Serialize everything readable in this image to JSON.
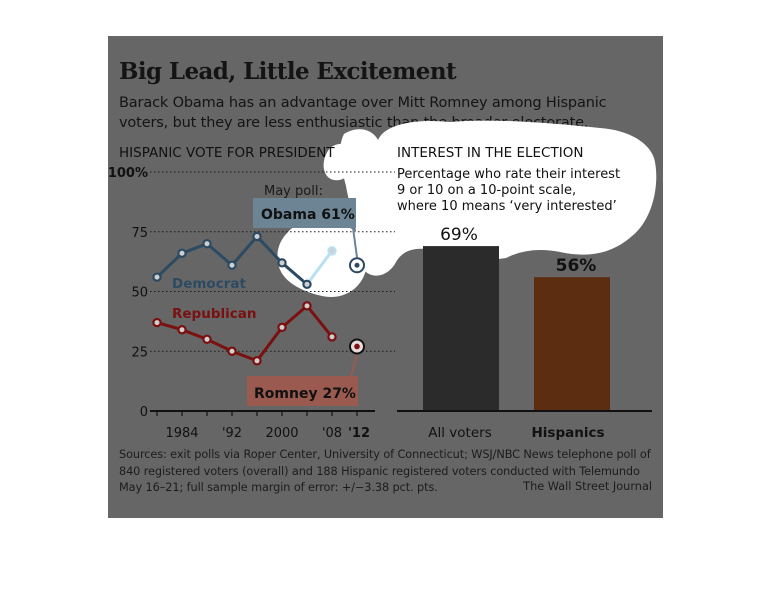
{
  "header": {
    "title": "Big Lead, Little Excitement",
    "subtitle": "Barack Obama has an advantage over Mitt Romney among Hispanic voters, but they are less enthusiastic than the broader electorate."
  },
  "footer": {
    "sources": "Sources: exit polls via Roper Center, University of Connecticut; WSJ/NBC News telephone poll of 840 registered voters (overall) and 188 Hispanic registered voters conducted with Telemundo May 16–21; full sample margin of error: +/−3.38 pct. pts.",
    "credit": "The Wall Street Journal"
  },
  "colors": {
    "panel": "#666666",
    "democrat": "#2d4a63",
    "democrat_callout": "#b9e0f2",
    "republican": "#7a1010",
    "romney_box": "#9a5a50",
    "all_voters_bar": "#2b2b2b",
    "hispanics_bar": "#5c2d10"
  },
  "chart_data": [
    {
      "type": "line",
      "title": "HISPANIC VOTE FOR PRESIDENT",
      "x": [
        1980,
        1984,
        1988,
        1992,
        1996,
        2000,
        2004,
        2008
      ],
      "x_tick_labels": [
        "1984",
        "'92",
        "2000",
        "'08",
        "'12"
      ],
      "y_tick_labels": [
        "100%",
        "75",
        "50",
        "25",
        "0"
      ],
      "ylim": [
        0,
        100
      ],
      "series": [
        {
          "name": "Democrat",
          "values": [
            56,
            66,
            70,
            61,
            73,
            62,
            53,
            67
          ]
        },
        {
          "name": "Republican",
          "values": [
            37,
            34,
            30,
            25,
            21,
            35,
            44,
            31
          ]
        }
      ],
      "annotations": {
        "may_poll_label": "May poll:",
        "obama_label": "Obama",
        "obama_value_label": "61%",
        "obama_value": 61,
        "romney_label": "Romney",
        "romney_value_label": "27%",
        "romney_value": 27,
        "poll_year": 2012
      },
      "grid": "dotted horizontal"
    },
    {
      "type": "bar",
      "title": "INTEREST IN THE ELECTION",
      "subtitle": "Percentage who rate their interest 9 or 10 on a 10-point scale, where 10 means ‘very interested’",
      "categories": [
        "All voters",
        "Hispanics"
      ],
      "values": [
        69,
        56
      ],
      "value_labels": [
        "69%",
        "56%"
      ],
      "ylim": [
        0,
        100
      ]
    }
  ]
}
